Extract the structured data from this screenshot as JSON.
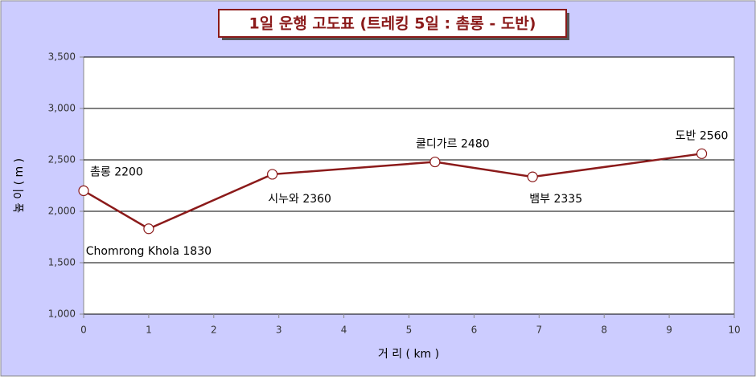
{
  "chart_data": {
    "type": "line",
    "title": "1일 운행 고도표 (트레킹 5일 : 촘롱 - 도반)",
    "x_label": "거   리 ( km )",
    "y_label": "높 이 ( m )",
    "x": [
      0,
      1,
      2.9,
      5.4,
      6.9,
      9.5
    ],
    "series": [
      {
        "color": "#8b1a1a",
        "values": [
          2200,
          1830,
          2360,
          2480,
          2335,
          2560
        ],
        "value_labels": [
          "촘롱 2200",
          "Chomrong Khola 1830",
          "시누와 2360",
          "쿨디가르 2480",
          "뱀부 2335",
          "도반 2560"
        ]
      }
    ],
    "xlim": [
      0,
      10
    ],
    "xticks": [
      0,
      1,
      2,
      3,
      4,
      5,
      6,
      7,
      8,
      9,
      10
    ],
    "ylim": [
      1000,
      3500
    ],
    "yticks": [
      {
        "value": 1000,
        "label": "1,000"
      },
      {
        "value": 1500,
        "label": "1,500"
      },
      {
        "value": 2000,
        "label": "2,000"
      },
      {
        "value": 2500,
        "label": "2,500"
      },
      {
        "value": 3000,
        "label": "3,000"
      },
      {
        "value": 3500,
        "label": "3,500"
      }
    ],
    "grid": true
  }
}
